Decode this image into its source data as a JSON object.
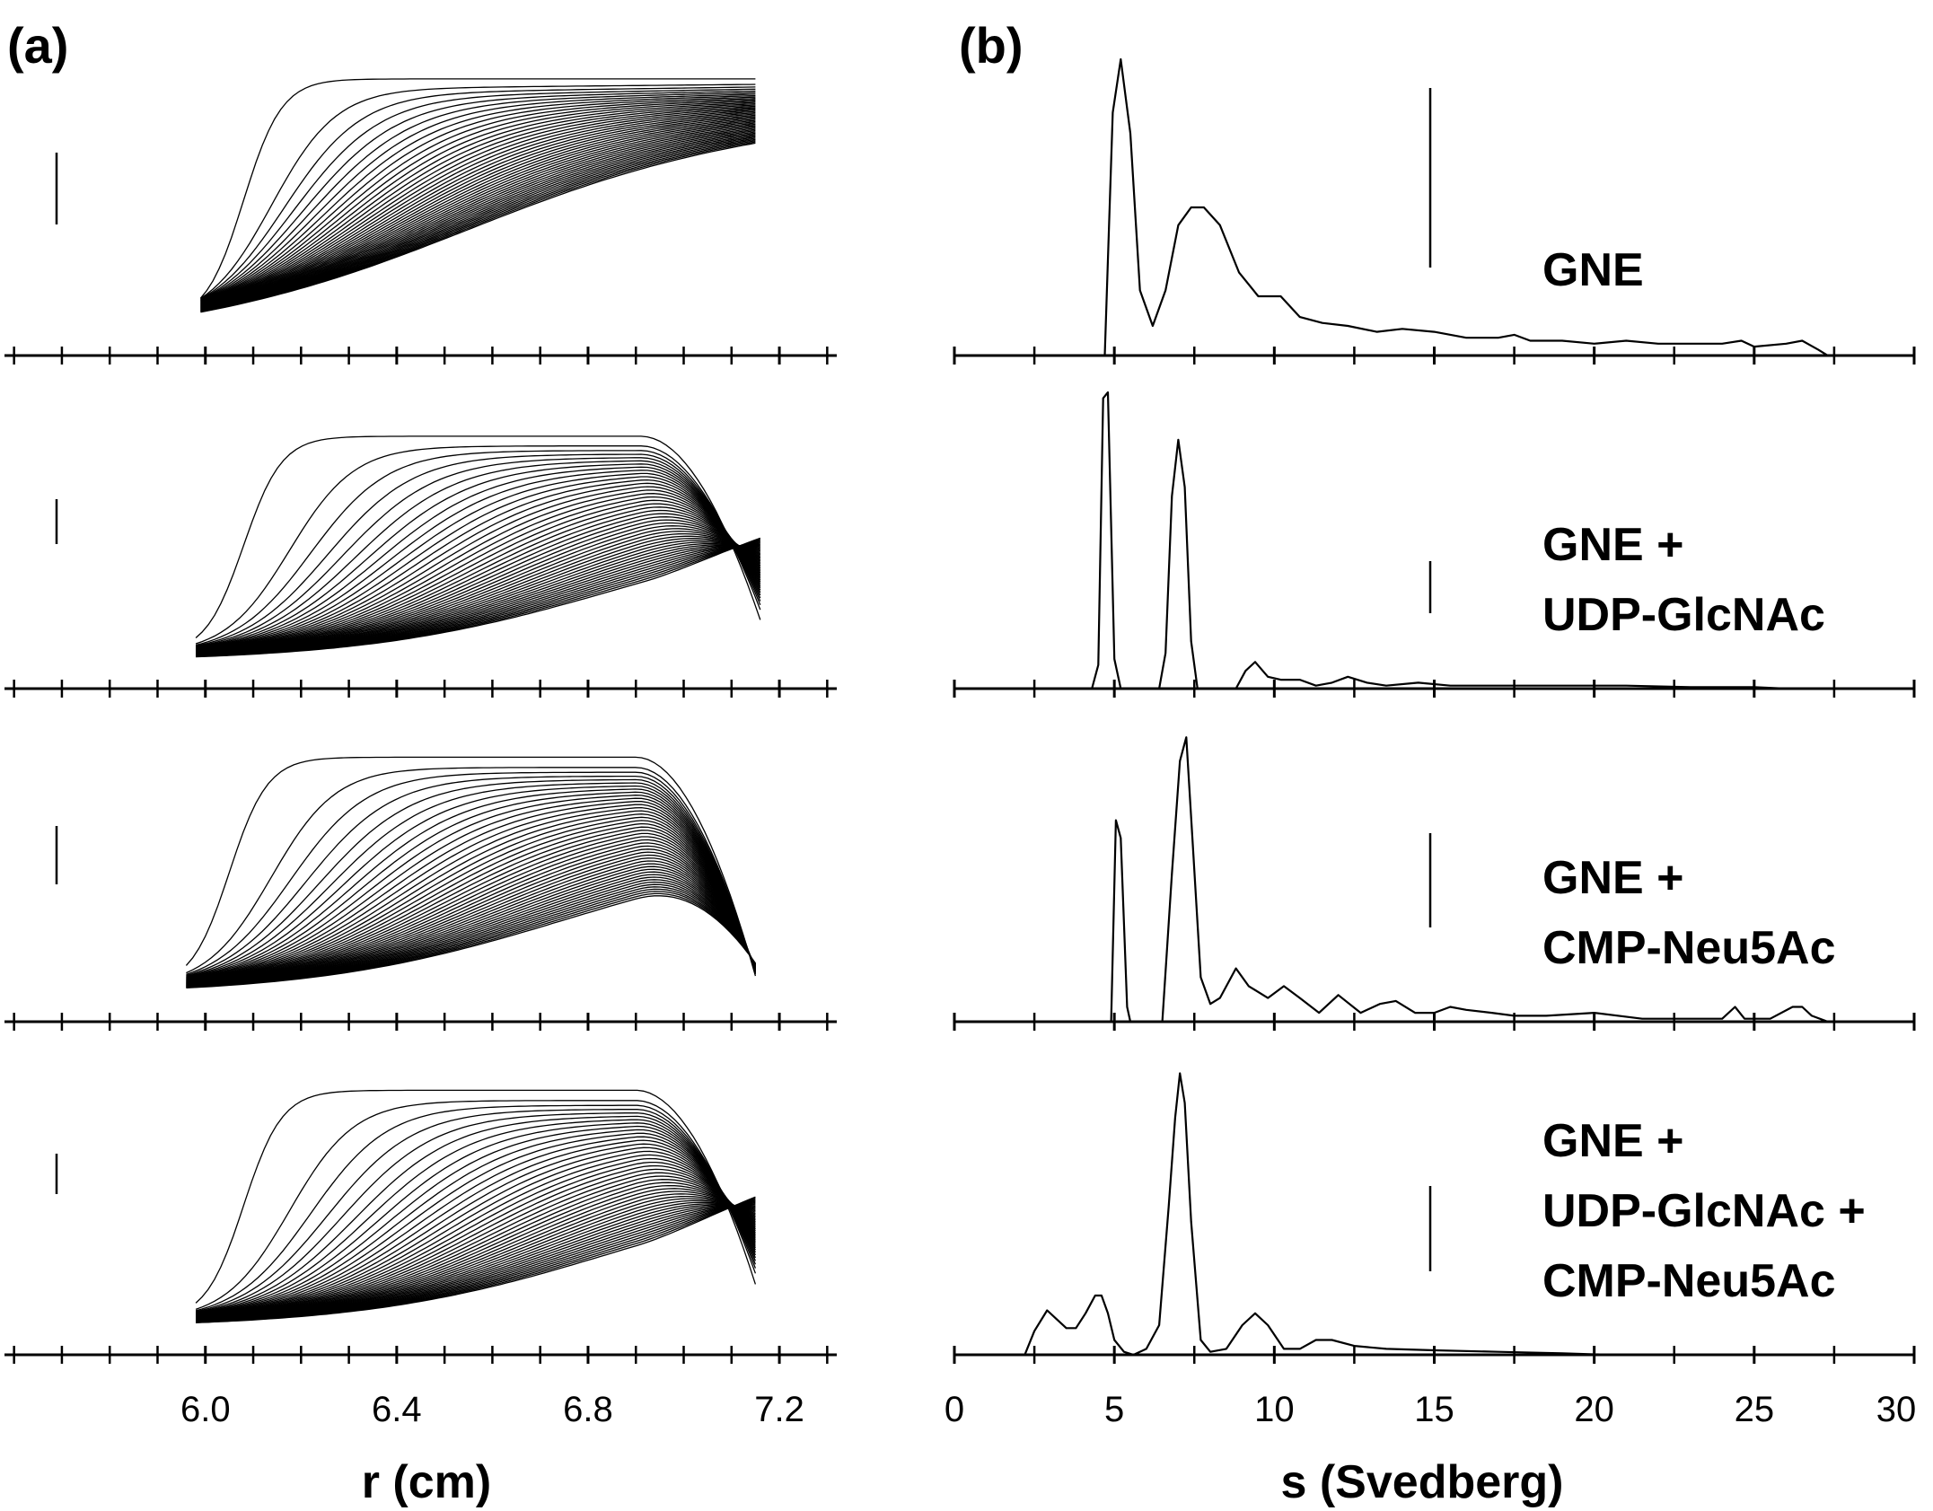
{
  "figure": {
    "panel_labels": [
      "(a)",
      "(b)"
    ]
  },
  "chart_data": [
    {
      "type": "line",
      "panel": "(a)",
      "xlabel": "r (cm)",
      "ylabel": "",
      "xlim": [
        5.58,
        7.32
      ],
      "xtick_labels": [
        "6.0",
        "6.4",
        "6.8",
        "7.2"
      ],
      "xticks_major": [
        6.0,
        6.4,
        6.8,
        7.2
      ],
      "xticks_minor_step": 0.1,
      "grid": false,
      "subplots": [
        {
          "meniscus_r": 5.99,
          "bottom_r": 7.15,
          "n_scans": 45,
          "boundary_start_r": 6.08,
          "boundary_end_r": 6.55,
          "final_level": 0.42,
          "plateau_level": 1.0,
          "bottom_artifact": false
        },
        {
          "meniscus_r": 5.98,
          "bottom_r": 7.16,
          "n_scans": 45,
          "boundary_start_r": 6.08,
          "boundary_end_r": 6.85,
          "final_level": 0.45,
          "plateau_level": 0.9,
          "bottom_artifact": true
        },
        {
          "meniscus_r": 5.96,
          "bottom_r": 7.15,
          "n_scans": 45,
          "boundary_start_r": 6.05,
          "boundary_end_r": 6.75,
          "final_level": 0.07,
          "plateau_level": 0.95,
          "bottom_artifact": true
        },
        {
          "meniscus_r": 5.98,
          "bottom_r": 7.15,
          "n_scans": 45,
          "boundary_start_r": 6.08,
          "boundary_end_r": 6.85,
          "final_level": 0.48,
          "plateau_level": 0.95,
          "bottom_artifact": true
        }
      ]
    },
    {
      "type": "line",
      "panel": "(b)",
      "xlabel": "s (Svedberg)",
      "ylabel": "",
      "xlim": [
        0,
        30
      ],
      "xtick_labels": [
        "0",
        "5",
        "10",
        "15",
        "20",
        "25",
        "30"
      ],
      "xticks_major": [
        0,
        5,
        10,
        15,
        20,
        25,
        30
      ],
      "xticks_minor_step": 2.5,
      "grid": false,
      "series": [
        {
          "name": "GNE",
          "label_lines": [
            "GNE"
          ],
          "x": [
            4.7,
            4.95,
            5.2,
            5.5,
            5.8,
            6.2,
            6.6,
            7.0,
            7.4,
            7.8,
            8.3,
            8.9,
            9.5,
            10.2,
            10.8,
            11.5,
            12.3,
            13.2,
            14.0,
            15.0,
            16.0,
            17.0,
            17.5,
            18.0,
            19.0,
            20.0,
            21.0,
            22.0,
            23.0,
            24.0,
            24.6,
            25.0,
            26.0,
            26.5,
            27.0,
            27.3
          ],
          "y": [
            0.0,
            0.82,
            1.0,
            0.75,
            0.22,
            0.1,
            0.22,
            0.44,
            0.5,
            0.5,
            0.44,
            0.28,
            0.2,
            0.2,
            0.13,
            0.11,
            0.1,
            0.08,
            0.09,
            0.08,
            0.06,
            0.06,
            0.07,
            0.05,
            0.05,
            0.04,
            0.05,
            0.04,
            0.04,
            0.04,
            0.05,
            0.03,
            0.04,
            0.05,
            0.02,
            0.0
          ]
        },
        {
          "name": "GNE + UDP-GlcNAc",
          "label_lines": [
            "GNE +",
            "UDP-GlcNAc"
          ],
          "x": [
            4.3,
            4.5,
            4.65,
            4.8,
            5.0,
            5.2,
            6.4,
            6.6,
            6.8,
            7.0,
            7.2,
            7.4,
            7.6,
            8.8,
            9.1,
            9.4,
            9.8,
            10.2,
            10.8,
            11.3,
            11.8,
            12.3,
            12.9,
            13.5,
            14.5,
            15.5,
            17.0,
            19.0,
            21.0,
            23.0,
            25.0,
            26.0,
            27.0
          ],
          "y": [
            0.0,
            0.08,
            0.98,
            1.0,
            0.1,
            0.0,
            0.0,
            0.12,
            0.65,
            0.84,
            0.68,
            0.16,
            0.0,
            0.0,
            0.06,
            0.09,
            0.04,
            0.03,
            0.03,
            0.01,
            0.02,
            0.04,
            0.02,
            0.01,
            0.02,
            0.01,
            0.01,
            0.01,
            0.01,
            0.005,
            0.005,
            0.0,
            0.0
          ]
        },
        {
          "name": "GNE + CMP-Neu5Ac",
          "label_lines": [
            "GNE +",
            "CMP-Neu5Ac"
          ],
          "x": [
            4.9,
            5.05,
            5.2,
            5.4,
            5.5,
            6.5,
            6.8,
            7.05,
            7.25,
            7.45,
            7.7,
            8.0,
            8.3,
            8.8,
            9.2,
            9.8,
            10.3,
            10.8,
            11.4,
            12.0,
            12.7,
            13.3,
            13.8,
            14.4,
            15.0,
            15.5,
            16.0,
            16.8,
            17.5,
            18.5,
            20.0,
            21.5,
            23.0,
            24.0,
            24.4,
            24.7,
            25.5,
            26.2,
            26.5,
            26.8,
            27.3
          ],
          "y": [
            0.0,
            0.68,
            0.62,
            0.05,
            0.0,
            0.0,
            0.5,
            0.88,
            0.96,
            0.6,
            0.15,
            0.06,
            0.08,
            0.18,
            0.12,
            0.08,
            0.12,
            0.08,
            0.03,
            0.09,
            0.03,
            0.06,
            0.07,
            0.03,
            0.03,
            0.05,
            0.04,
            0.03,
            0.02,
            0.02,
            0.03,
            0.01,
            0.01,
            0.01,
            0.05,
            0.01,
            0.01,
            0.05,
            0.05,
            0.02,
            0.0
          ]
        },
        {
          "name": "GNE + UDP-GlcNAc + CMP-Neu5Ac",
          "label_lines": [
            "GNE +",
            "UDP-GlcNAc +",
            "CMP-Neu5Ac"
          ],
          "x": [
            2.2,
            2.5,
            2.9,
            3.2,
            3.5,
            3.8,
            4.1,
            4.4,
            4.6,
            4.8,
            5.0,
            5.3,
            5.6,
            6.0,
            6.4,
            6.7,
            6.9,
            7.05,
            7.2,
            7.4,
            7.7,
            8.0,
            8.5,
            9.0,
            9.4,
            9.8,
            10.3,
            10.8,
            11.3,
            11.8,
            12.5,
            13.5,
            15.0,
            17.0,
            19.0,
            20.5
          ],
          "y": [
            0.0,
            0.08,
            0.15,
            0.12,
            0.09,
            0.09,
            0.14,
            0.2,
            0.2,
            0.14,
            0.05,
            0.01,
            0.0,
            0.02,
            0.1,
            0.5,
            0.8,
            0.95,
            0.85,
            0.45,
            0.05,
            0.01,
            0.02,
            0.1,
            0.14,
            0.1,
            0.02,
            0.02,
            0.05,
            0.05,
            0.03,
            0.02,
            0.015,
            0.01,
            0.005,
            0.0
          ]
        }
      ]
    }
  ]
}
